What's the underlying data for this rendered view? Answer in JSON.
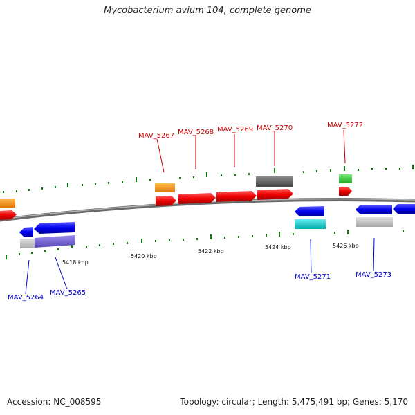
{
  "header": {
    "title": "Mycobacterium avium 104, complete genome"
  },
  "footer": {
    "accession": "Accession: NC_008595",
    "summary": "Topology: circular; Length: 5,475,491 bp; Genes: 5,170"
  },
  "scale": {
    "tick_labels": [
      "5418 kbp",
      "5420 kbp",
      "5422 kbp",
      "5424 kbp",
      "5426 kbp"
    ]
  },
  "genes_forward": [
    {
      "label": "MAV_5267"
    },
    {
      "label": "MAV_5268"
    },
    {
      "label": "MAV_5269"
    },
    {
      "label": "MAV_5270"
    },
    {
      "label": "MAV_5272"
    }
  ],
  "genes_reverse": [
    {
      "label": "MAV_5264"
    },
    {
      "label": "MAV_5265"
    },
    {
      "label": "MAV_5271"
    },
    {
      "label": "MAV_5273"
    }
  ],
  "colors": {
    "forward_label": "#cc0000",
    "reverse_label": "#0000cc",
    "forward_gene": "#ee0000",
    "reverse_gene": "#0000ee",
    "backbone": "#888888",
    "tick": "#0a7a0a"
  }
}
